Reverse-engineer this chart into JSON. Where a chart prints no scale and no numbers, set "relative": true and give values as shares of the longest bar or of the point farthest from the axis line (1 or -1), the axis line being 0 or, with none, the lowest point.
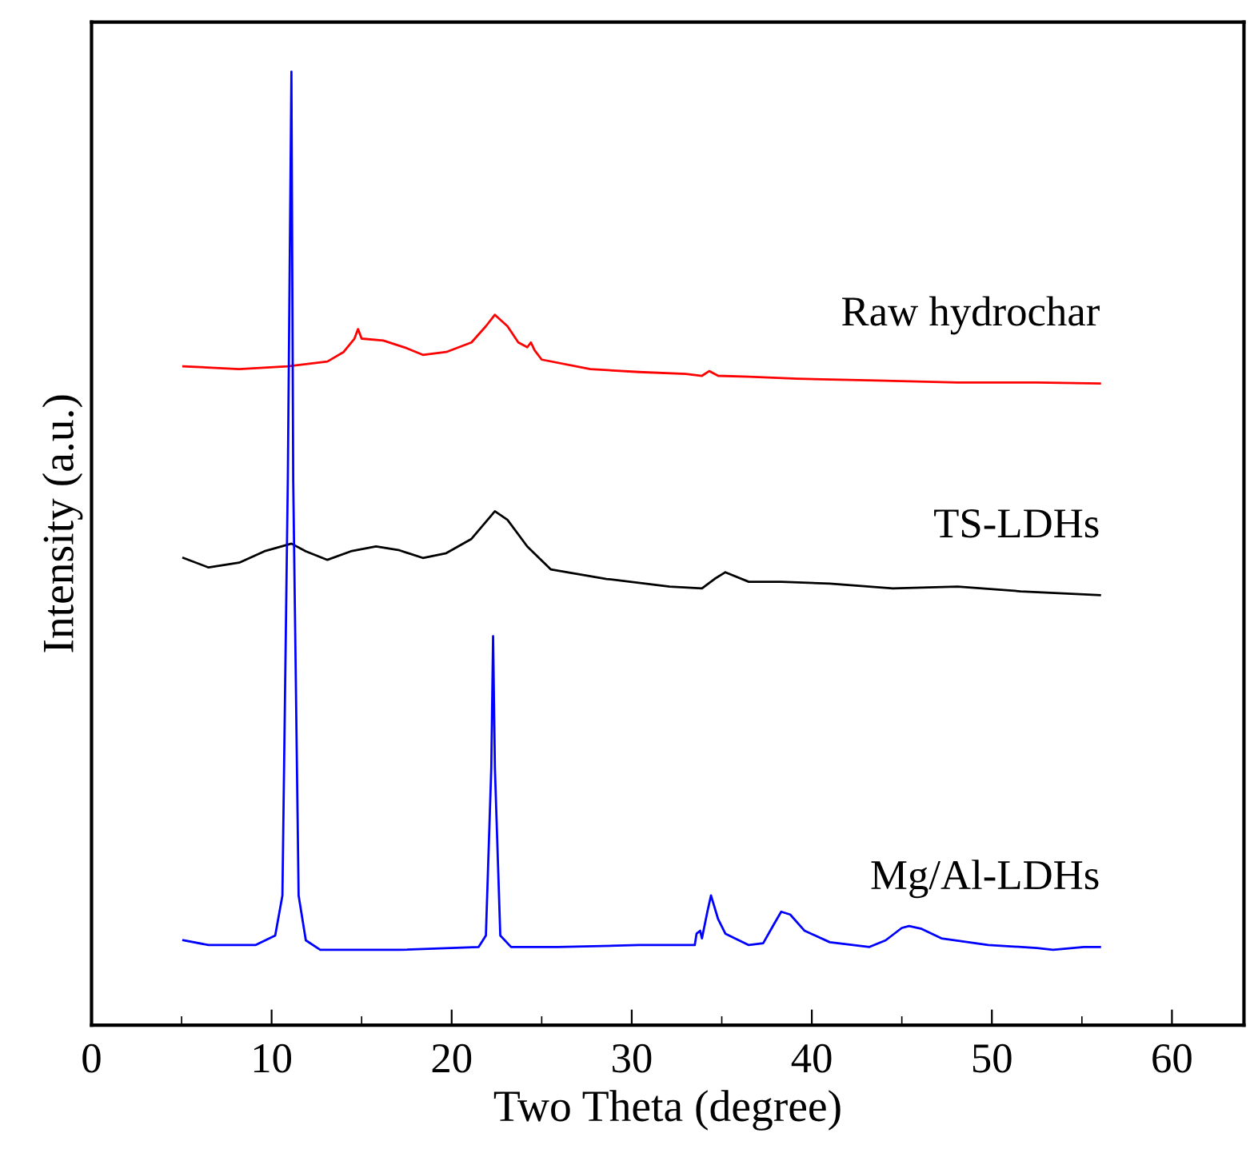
{
  "chart_data": {
    "type": "line",
    "xlabel": "Two Theta (degree)",
    "ylabel": "Intensity (a.u.)",
    "relative": true,
    "tick_labels": "x",
    "grid": false,
    "legend": false,
    "xlim": [
      0,
      64
    ],
    "xticks": [
      0,
      {
        "value": 5,
        "label": null
      },
      10,
      {
        "value": 15,
        "label": null
      },
      20,
      {
        "value": 25,
        "label": null
      },
      30,
      {
        "value": 35,
        "label": null
      },
      40,
      {
        "value": 45,
        "label": null
      },
      50,
      {
        "value": 55,
        "label": null
      },
      60
    ],
    "series": [
      {
        "name": "Raw hydrochar",
        "color": "#ff0000",
        "x": [
          5.1,
          8.2,
          10.9,
          13.1,
          14.0,
          14.6,
          14.8,
          15.0,
          16.2,
          17.5,
          18.4,
          19.7,
          21.1,
          21.9,
          22.4,
          23.1,
          23.7,
          24.2,
          24.4,
          24.6,
          25.0,
          27.7,
          30.4,
          33.0,
          33.9,
          34.3,
          34.8,
          36.5,
          39.2,
          43.6,
          48.1,
          52.5,
          56.0
        ],
        "values": [
          0.691,
          0.688,
          0.691,
          0.696,
          0.706,
          0.72,
          0.73,
          0.72,
          0.718,
          0.71,
          0.703,
          0.706,
          0.716,
          0.733,
          0.745,
          0.733,
          0.716,
          0.711,
          0.716,
          0.708,
          0.698,
          0.688,
          0.685,
          0.683,
          0.681,
          0.686,
          0.681,
          0.68,
          0.678,
          0.676,
          0.674,
          0.674,
          0.673
        ]
      },
      {
        "name": "TS-LDHs",
        "color": "#000000",
        "x": [
          5.1,
          6.5,
          8.2,
          9.6,
          11.1,
          11.9,
          13.1,
          14.4,
          15.8,
          17.1,
          18.4,
          19.7,
          21.1,
          22.4,
          23.1,
          24.2,
          25.5,
          28.6,
          32.1,
          33.9,
          34.6,
          35.2,
          36.5,
          38.3,
          41.0,
          44.5,
          48.1,
          51.6,
          56.0
        ],
        "values": [
          0.49,
          0.48,
          0.485,
          0.497,
          0.505,
          0.497,
          0.488,
          0.497,
          0.502,
          0.498,
          0.49,
          0.495,
          0.51,
          0.539,
          0.53,
          0.502,
          0.478,
          0.468,
          0.46,
          0.458,
          0.468,
          0.475,
          0.465,
          0.465,
          0.463,
          0.458,
          0.46,
          0.455,
          0.451
        ]
      },
      {
        "name": "Mg/Al-LDHs",
        "color": "#0000ff",
        "x": [
          5.1,
          6.5,
          9.1,
          10.2,
          10.6,
          10.9,
          11.1,
          11.2,
          11.5,
          11.9,
          12.7,
          17.1,
          21.5,
          21.9,
          22.2,
          22.3,
          22.4,
          22.7,
          23.3,
          25.9,
          30.4,
          33.5,
          33.6,
          33.8,
          33.9,
          34.2,
          34.4,
          34.8,
          35.2,
          36.5,
          37.3,
          37.9,
          38.3,
          38.8,
          39.6,
          41.0,
          43.2,
          44.1,
          45.0,
          45.4,
          46.1,
          47.2,
          49.8,
          52.5,
          53.4,
          55.1,
          56.0
        ],
        "values": [
          0.089,
          0.084,
          0.084,
          0.094,
          0.136,
          0.572,
          1,
          0.572,
          0.136,
          0.089,
          0.079,
          0.079,
          0.082,
          0.094,
          0.27,
          0.408,
          0.27,
          0.094,
          0.082,
          0.082,
          0.084,
          0.084,
          0.096,
          0.099,
          0.091,
          0.119,
          0.136,
          0.111,
          0.096,
          0.084,
          0.086,
          0.106,
          0.119,
          0.116,
          0.099,
          0.087,
          0.082,
          0.089,
          0.102,
          0.104,
          0.101,
          0.091,
          0.084,
          0.081,
          0.079,
          0.082,
          0.082
        ]
      }
    ]
  }
}
